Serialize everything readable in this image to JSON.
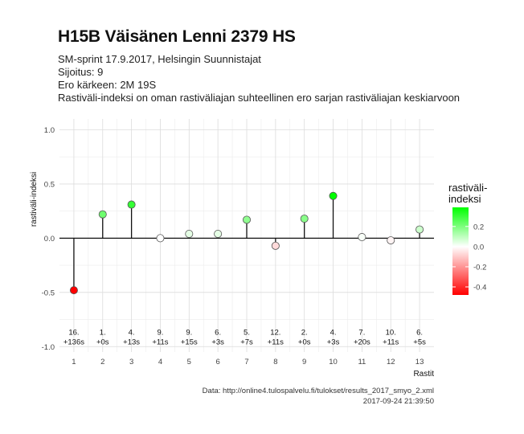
{
  "header": {
    "title": "H15B Väisänen Lenni 2379 HS",
    "subtitle_lines": [
      "SM-sprint 17.9.2017, Helsingin Suunnistajat",
      "Sijoitus: 9",
      "Ero kärkeen: 2M 19S",
      "Rastiväli-indeksi on oman rastiväliajan suhteellinen ero sarjan rastiväliajan keskiarvoon"
    ]
  },
  "caption": {
    "source": "Data: http://online4.tulospalvelu.fi/tulokset/results_2017_smyo_2.xml",
    "timestamp": "2017-09-24 21:39:50"
  },
  "chart_data": {
    "type": "scatter",
    "style": "lollipop",
    "xlabel": "Rastit",
    "ylabel": "rastiväli-indeksi",
    "x": [
      1,
      2,
      3,
      4,
      5,
      6,
      7,
      8,
      9,
      10,
      11,
      12,
      13
    ],
    "values": [
      -0.48,
      0.22,
      0.31,
      0.0,
      0.04,
      0.04,
      0.17,
      -0.07,
      0.18,
      0.39,
      0.01,
      -0.02,
      0.08
    ],
    "annotations": [
      [
        "16.",
        "+136s"
      ],
      [
        "1.",
        "+0s"
      ],
      [
        "4.",
        "+13s"
      ],
      [
        "9.",
        "+11s"
      ],
      [
        "9.",
        "+15s"
      ],
      [
        "6.",
        "+3s"
      ],
      [
        "5.",
        "+7s"
      ],
      [
        "12.",
        "+11s"
      ],
      [
        "2.",
        "+0s"
      ],
      [
        "4.",
        "+3s"
      ],
      [
        "7.",
        "+20s"
      ],
      [
        "10.",
        "+11s"
      ],
      [
        "6.",
        "+5s"
      ]
    ],
    "annotation_y": -0.92,
    "xlim": [
      0.5,
      13.5
    ],
    "ylim": [
      -1.05,
      1.1
    ],
    "yticks": [
      -1.0,
      -0.5,
      0.0,
      0.5,
      1.0
    ],
    "ytick_labels": [
      "-1.0",
      "-0.5",
      "0.0",
      "0.5",
      "1.0"
    ],
    "xtick_labels": [
      "1",
      "2",
      "3",
      "4",
      "5",
      "6",
      "7",
      "8",
      "9",
      "10",
      "11",
      "12",
      "13"
    ],
    "grid": true,
    "legend": {
      "title": "rastiväli-\nindeksi",
      "ticks": [
        0.2,
        0.0,
        -0.2,
        -0.4
      ],
      "tick_labels": [
        "0.2",
        "0.0",
        "-0.2",
        "-0.4"
      ],
      "range": [
        -0.48,
        0.39
      ],
      "placement": "right"
    },
    "colors": {
      "low": "#ff0000",
      "mid": "#ffffff",
      "high": "#00ff00"
    }
  }
}
